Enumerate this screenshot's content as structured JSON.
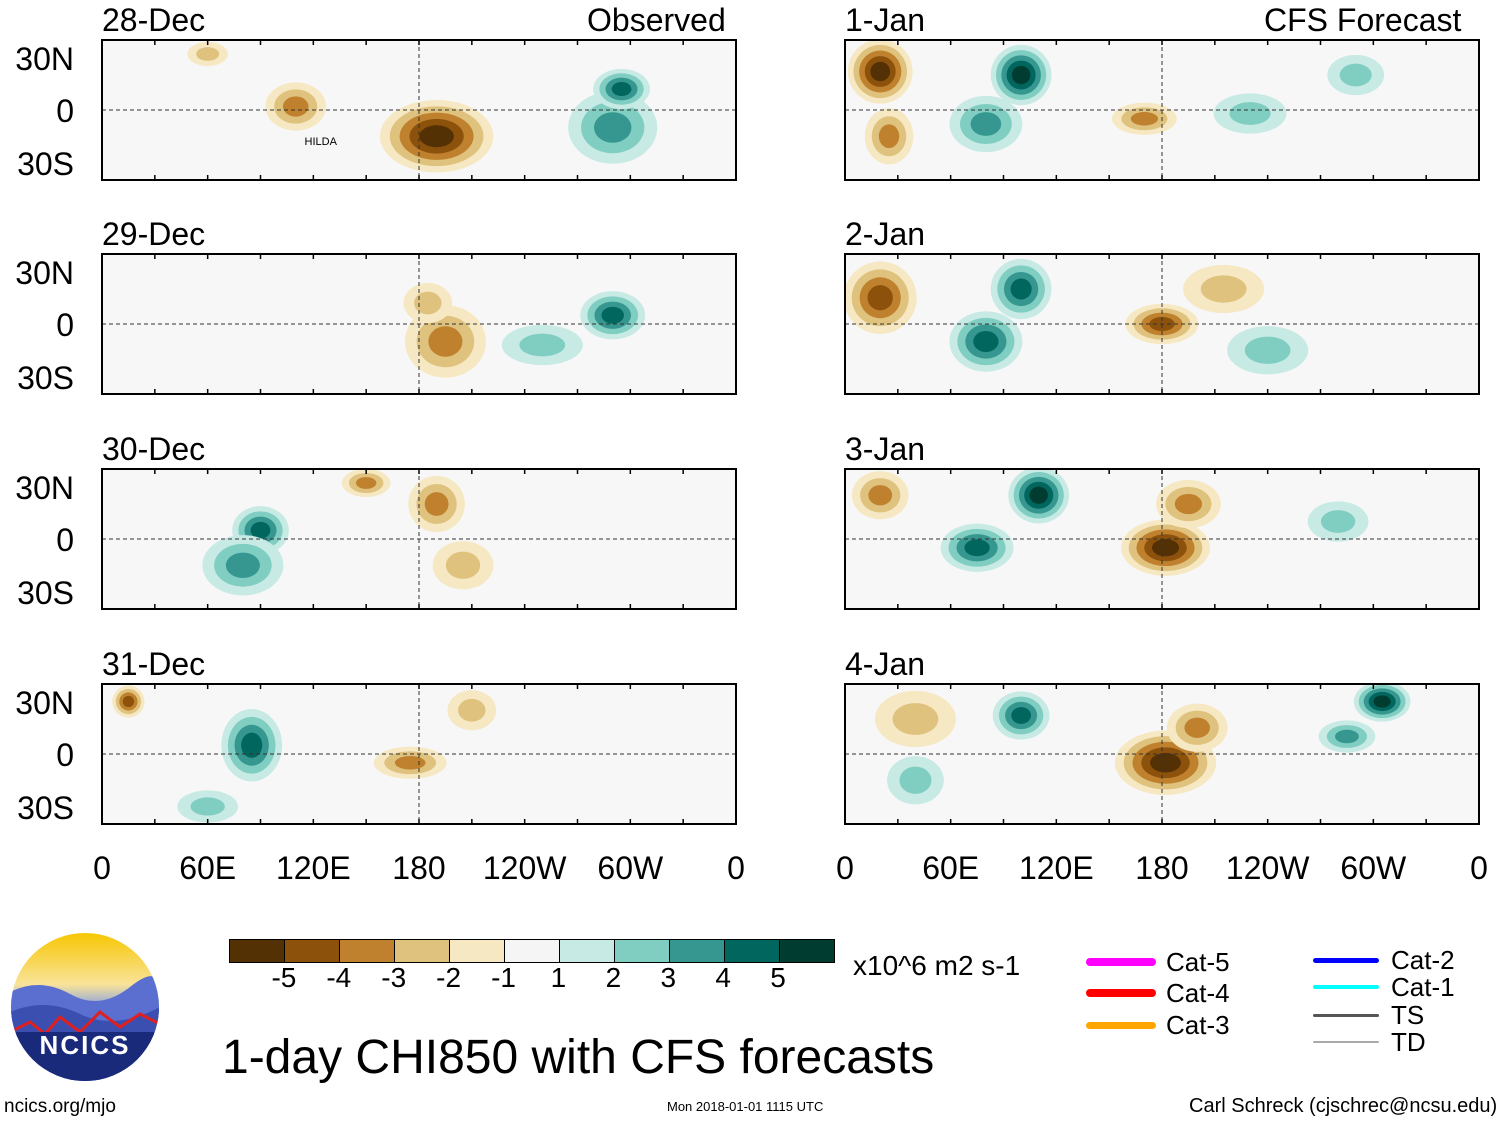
{
  "header": {
    "observed_label": "Observed",
    "forecast_label": "CFS Forecast"
  },
  "title": "1-day CHI850 with CFS forecasts",
  "units": "x10^6 m2 s-1",
  "footer": {
    "left": "ncics.org/mjo",
    "center": "Mon 2018-01-01 1115 UTC",
    "right": "Carl Schreck (cjschrec@ncsu.edu)"
  },
  "logo": {
    "text": "NCICS"
  },
  "storm_label": "HILDA",
  "lat_ticks": [
    "30N",
    "0",
    "30S"
  ],
  "lon_ticks": [
    "0",
    "60E",
    "120E",
    "180",
    "120W",
    "60W",
    "0"
  ],
  "colorbar": {
    "labels": [
      "-5",
      "-4",
      "-3",
      "-2",
      "-1",
      "1",
      "2",
      "3",
      "4",
      "5"
    ],
    "colors": [
      "#543005",
      "#8c510a",
      "#bf812d",
      "#dfc27d",
      "#f6e8c3",
      "#f5f5f5",
      "#c7eae5",
      "#80cdc1",
      "#35978f",
      "#01665e",
      "#003c30"
    ]
  },
  "legend": [
    {
      "label": "Cat-5",
      "color": "#ff00ff"
    },
    {
      "label": "Cat-4",
      "color": "#ff0000"
    },
    {
      "label": "Cat-3",
      "color": "#ffa500"
    },
    {
      "label": "Cat-2",
      "color": "#0000ff"
    },
    {
      "label": "Cat-1",
      "color": "#00ffff"
    },
    {
      "label": "TS",
      "color": "#555555"
    },
    {
      "label": "TD",
      "color": "#aaaaaa"
    }
  ],
  "chart_data": {
    "type": "heatmap",
    "variable": "CHI850 anomaly",
    "lon_range": [
      0,
      360
    ],
    "lat_range": [
      -40,
      40
    ],
    "panels": [
      {
        "date": "28-Dec",
        "kind": "observed",
        "anomalies": [
          [
            190,
            -15,
            28,
            18,
            -5
          ],
          [
            110,
            2,
            15,
            12,
            -3
          ],
          [
            60,
            32,
            10,
            6,
            -2
          ],
          [
            290,
            -10,
            22,
            18,
            3
          ],
          [
            295,
            12,
            14,
            10,
            4
          ]
        ]
      },
      {
        "date": "29-Dec",
        "kind": "observed",
        "anomalies": [
          [
            195,
            -10,
            20,
            18,
            -3
          ],
          [
            185,
            12,
            12,
            10,
            -2
          ],
          [
            290,
            5,
            16,
            12,
            4
          ],
          [
            250,
            -12,
            20,
            10,
            2
          ]
        ]
      },
      {
        "date": "30-Dec",
        "kind": "observed",
        "anomalies": [
          [
            90,
            5,
            14,
            12,
            4
          ],
          [
            80,
            -15,
            20,
            15,
            3
          ],
          [
            150,
            32,
            12,
            7,
            -3
          ],
          [
            190,
            20,
            14,
            14,
            -3
          ],
          [
            205,
            -15,
            15,
            12,
            -2
          ]
        ]
      },
      {
        "date": "31-Dec",
        "kind": "observed",
        "anomalies": [
          [
            85,
            5,
            15,
            18,
            4
          ],
          [
            15,
            30,
            8,
            8,
            -4
          ],
          [
            175,
            -5,
            18,
            8,
            -3
          ],
          [
            210,
            25,
            12,
            10,
            -2
          ],
          [
            60,
            -30,
            15,
            8,
            2
          ]
        ]
      },
      {
        "date": "1-Jan",
        "kind": "forecast",
        "anomalies": [
          [
            20,
            22,
            16,
            16,
            -5
          ],
          [
            25,
            -15,
            12,
            14,
            -3
          ],
          [
            100,
            20,
            15,
            15,
            5
          ],
          [
            80,
            -8,
            18,
            14,
            3
          ],
          [
            170,
            -5,
            16,
            8,
            -3
          ],
          [
            230,
            -2,
            18,
            10,
            2
          ],
          [
            290,
            20,
            14,
            10,
            2
          ]
        ]
      },
      {
        "date": "2-Jan",
        "kind": "forecast",
        "anomalies": [
          [
            20,
            15,
            18,
            18,
            -4
          ],
          [
            100,
            20,
            15,
            15,
            4
          ],
          [
            80,
            -10,
            18,
            15,
            4
          ],
          [
            180,
            0,
            18,
            10,
            -4
          ],
          [
            215,
            20,
            20,
            12,
            -2
          ],
          [
            240,
            -15,
            20,
            12,
            2
          ]
        ]
      },
      {
        "date": "3-Jan",
        "kind": "forecast",
        "anomalies": [
          [
            20,
            25,
            14,
            12,
            -3
          ],
          [
            110,
            25,
            15,
            14,
            5
          ],
          [
            75,
            -5,
            18,
            12,
            4
          ],
          [
            182,
            -5,
            22,
            14,
            -5
          ],
          [
            195,
            20,
            16,
            12,
            -3
          ],
          [
            280,
            10,
            15,
            10,
            2
          ]
        ]
      },
      {
        "date": "4-Jan",
        "kind": "forecast",
        "anomalies": [
          [
            182,
            -5,
            25,
            16,
            -5
          ],
          [
            200,
            15,
            15,
            12,
            -3
          ],
          [
            100,
            22,
            14,
            12,
            4
          ],
          [
            305,
            30,
            14,
            10,
            5
          ],
          [
            285,
            10,
            14,
            8,
            3
          ],
          [
            40,
            20,
            20,
            14,
            -2
          ],
          [
            40,
            -15,
            14,
            12,
            2
          ]
        ]
      }
    ]
  }
}
